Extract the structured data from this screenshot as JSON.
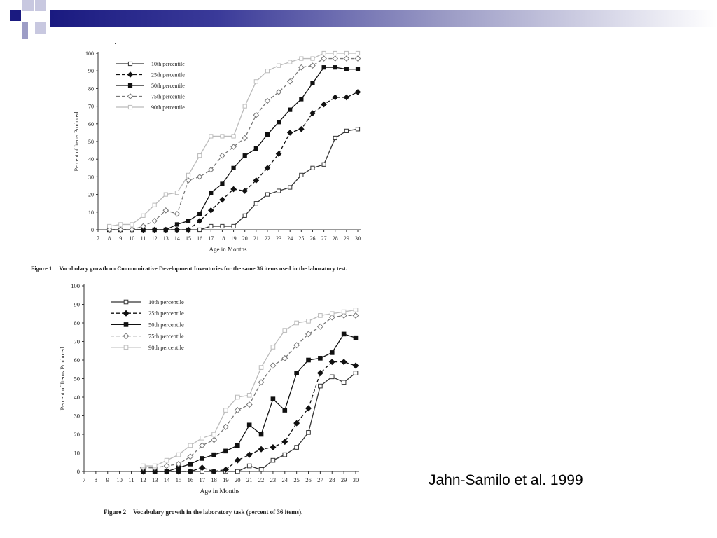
{
  "slide": {
    "citation": "Jahn-Samilo et al. 1999",
    "accent_color": "#1a1a80"
  },
  "chart_data": [
    {
      "type": "line",
      "title": "",
      "caption_label": "Figure 1",
      "caption_text": "Vocabulary growth on Communicative Development Inventories for the same 36 items used in the laboratory test.",
      "xlabel": "Age in Months",
      "ylabel": "Percent of Items Produced",
      "xlim": [
        7,
        30
      ],
      "ylim": [
        0,
        100
      ],
      "x_ticks": [
        7,
        8,
        9,
        10,
        11,
        12,
        13,
        14,
        15,
        16,
        17,
        18,
        19,
        20,
        21,
        22,
        23,
        24,
        25,
        26,
        27,
        28,
        29,
        30
      ],
      "y_ticks": [
        0,
        10,
        20,
        30,
        40,
        50,
        60,
        70,
        80,
        90,
        100
      ],
      "legend_position": "top-left",
      "series": [
        {
          "name": "10th percentile",
          "color": "#333333",
          "dash": "solid",
          "marker": "open-square",
          "x": [
            8,
            9,
            10,
            11,
            12,
            13,
            14,
            15,
            16,
            17,
            18,
            19,
            20,
            21,
            22,
            23,
            24,
            25,
            26,
            27,
            28,
            29,
            30
          ],
          "values": [
            0,
            0,
            0,
            0,
            0,
            0,
            0,
            0,
            0,
            2,
            2,
            2,
            8,
            15,
            20,
            22,
            24,
            31,
            35,
            37,
            52,
            56,
            57
          ]
        },
        {
          "name": "25th percentile",
          "color": "#111111",
          "dash": "dashed",
          "marker": "filled-diamond",
          "x": [
            8,
            9,
            10,
            11,
            12,
            13,
            14,
            15,
            16,
            17,
            18,
            19,
            20,
            21,
            22,
            23,
            24,
            25,
            26,
            27,
            28,
            29,
            30
          ],
          "values": [
            0,
            0,
            0,
            0,
            0,
            0,
            0,
            0,
            5,
            11,
            17,
            23,
            22,
            28,
            35,
            43,
            55,
            57,
            66,
            71,
            75,
            75,
            78
          ]
        },
        {
          "name": "50th percentile",
          "color": "#111111",
          "dash": "solid",
          "marker": "filled-square",
          "x": [
            8,
            9,
            10,
            11,
            12,
            13,
            14,
            15,
            16,
            17,
            18,
            19,
            20,
            21,
            22,
            23,
            24,
            25,
            26,
            27,
            28,
            29,
            30
          ],
          "values": [
            0,
            0,
            0,
            0,
            0,
            0,
            3,
            5,
            9,
            21,
            26,
            35,
            42,
            46,
            54,
            61,
            68,
            74,
            83,
            92,
            92,
            91,
            91
          ]
        },
        {
          "name": "75th percentile",
          "color": "#777777",
          "dash": "dashed",
          "marker": "open-diamond",
          "x": [
            8,
            9,
            10,
            11,
            12,
            13,
            14,
            15,
            16,
            17,
            18,
            19,
            20,
            21,
            22,
            23,
            24,
            25,
            26,
            27,
            28,
            29,
            30
          ],
          "values": [
            0,
            0,
            0,
            2,
            5,
            11,
            9,
            28,
            30,
            34,
            42,
            47,
            52,
            65,
            73,
            78,
            84,
            92,
            93,
            97,
            97,
            97,
            97
          ]
        },
        {
          "name": "90th percentile",
          "color": "#bbbbbb",
          "dash": "solid",
          "marker": "open-square-light",
          "x": [
            8,
            9,
            10,
            11,
            12,
            13,
            14,
            15,
            16,
            17,
            18,
            19,
            20,
            21,
            22,
            23,
            24,
            25,
            26,
            27,
            28,
            29,
            30
          ],
          "values": [
            2,
            3,
            3,
            8,
            14,
            20,
            21,
            31,
            42,
            53,
            53,
            53,
            70,
            84,
            90,
            93,
            95,
            97,
            97,
            100,
            100,
            100,
            100
          ]
        }
      ]
    },
    {
      "type": "line",
      "title": "",
      "caption_label": "Figure 2",
      "caption_text": "Vocabulary growth in the laboratory task (percent of 36 items).",
      "xlabel": "Age in Months",
      "ylabel": "Percent of Items Produced",
      "xlim": [
        7,
        30
      ],
      "ylim": [
        0,
        100
      ],
      "x_ticks": [
        7,
        8,
        9,
        10,
        11,
        12,
        13,
        14,
        15,
        16,
        17,
        18,
        19,
        20,
        21,
        22,
        23,
        24,
        25,
        26,
        27,
        28,
        29,
        30
      ],
      "y_ticks": [
        0,
        10,
        20,
        30,
        40,
        50,
        60,
        70,
        80,
        90,
        100
      ],
      "legend_position": "top-left",
      "series": [
        {
          "name": "10th percentile",
          "color": "#333333",
          "dash": "solid",
          "marker": "open-square",
          "x": [
            12,
            13,
            14,
            15,
            16,
            17,
            18,
            19,
            20,
            21,
            22,
            23,
            24,
            25,
            26,
            27,
            28,
            29,
            30
          ],
          "values": [
            0,
            0,
            0,
            0,
            0,
            0,
            0,
            0,
            0,
            3,
            1,
            6,
            9,
            13,
            21,
            46,
            51,
            48,
            53
          ]
        },
        {
          "name": "25th percentile",
          "color": "#111111",
          "dash": "dashed",
          "marker": "filled-diamond",
          "x": [
            12,
            13,
            14,
            15,
            16,
            17,
            18,
            19,
            20,
            21,
            22,
            23,
            24,
            25,
            26,
            27,
            28,
            29,
            30
          ],
          "values": [
            0,
            0,
            0,
            0,
            0,
            2,
            0,
            1,
            6,
            9,
            12,
            13,
            16,
            26,
            34,
            53,
            59,
            59,
            57
          ]
        },
        {
          "name": "50th percentile",
          "color": "#111111",
          "dash": "solid",
          "marker": "filled-square",
          "x": [
            12,
            13,
            14,
            15,
            16,
            17,
            18,
            19,
            20,
            21,
            22,
            23,
            24,
            25,
            26,
            27,
            28,
            29,
            30
          ],
          "values": [
            0,
            0,
            0,
            2,
            4,
            7,
            9,
            11,
            14,
            25,
            20,
            39,
            33,
            53,
            60,
            61,
            64,
            74,
            72
          ]
        },
        {
          "name": "75th percentile",
          "color": "#777777",
          "dash": "dashed",
          "marker": "open-diamond",
          "x": [
            12,
            13,
            14,
            15,
            16,
            17,
            18,
            19,
            20,
            21,
            22,
            23,
            24,
            25,
            26,
            27,
            28,
            29,
            30
          ],
          "values": [
            2,
            2,
            3,
            4,
            8,
            14,
            17,
            24,
            33,
            36,
            48,
            57,
            61,
            68,
            74,
            78,
            83,
            84,
            84
          ]
        },
        {
          "name": "90th percentile",
          "color": "#bbbbbb",
          "dash": "solid",
          "marker": "open-square-light",
          "x": [
            12,
            13,
            14,
            15,
            16,
            17,
            18,
            19,
            20,
            21,
            22,
            23,
            24,
            25,
            26,
            27,
            28,
            29,
            30
          ],
          "values": [
            3,
            3,
            6,
            9,
            14,
            18,
            20,
            33,
            40,
            41,
            56,
            67,
            76,
            80,
            81,
            84,
            85,
            86,
            87
          ]
        }
      ]
    }
  ]
}
